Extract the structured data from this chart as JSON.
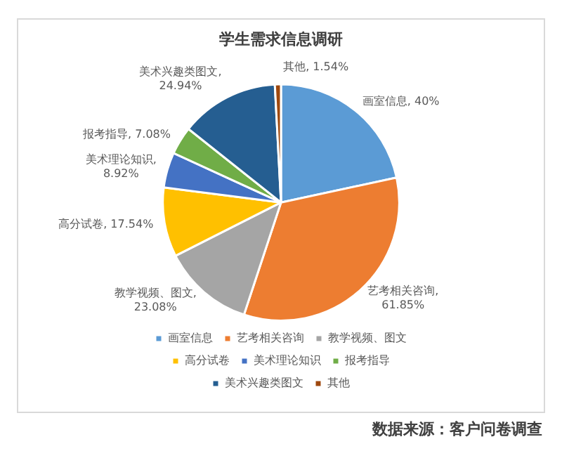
{
  "chart_data": {
    "type": "pie",
    "title": "学生需求信息调研",
    "categories": [
      "画室信息",
      "艺考相关咨询",
      "教学视频、图文",
      "高分试卷",
      "美术理论知识",
      "报考指导",
      "美术兴趣类图文",
      "其他"
    ],
    "values": [
      40,
      61.85,
      23.08,
      17.54,
      8.92,
      7.08,
      24.94,
      1.54
    ],
    "value_labels": [
      "画室信息, 40%",
      "艺考相关咨询, 61.85%",
      "教学视频、图文, 23.08%",
      "高分试卷, 17.54%",
      "美术理论知识, 8.92%",
      "报考指导, 7.08%",
      "美术兴趣类图文, 24.94%",
      "其他, 1.54%"
    ],
    "colors": [
      "#5b9bd5",
      "#ed7d31",
      "#a5a5a5",
      "#ffc000",
      "#4472c4",
      "#70ad47",
      "#255e91",
      "#9e480e"
    ],
    "legend": "bottom",
    "annotations": [
      "数据来源：客户问卷调查"
    ]
  }
}
